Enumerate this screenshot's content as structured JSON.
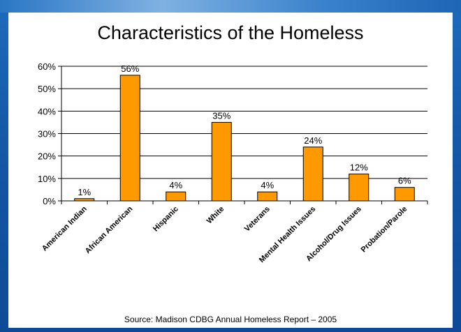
{
  "colors": {
    "background": "#1559a8",
    "panel": "#ffffff",
    "bar_fill": "#ff9900",
    "bar_stroke": "#000000",
    "grid": "#000000"
  },
  "source": "Source: Madison CDBG Annual Homeless Report – 2005",
  "chart_data": {
    "type": "bar",
    "title": "Characteristics of the Homeless",
    "categories": [
      "American Indian",
      "African American",
      "Hispanic",
      "White",
      "Veterans",
      "Mental Health Issues",
      "Alcohol/Drug Issues",
      "Probation/Parole"
    ],
    "values": [
      1,
      56,
      4,
      35,
      4,
      24,
      12,
      6
    ],
    "data_labels": [
      "1%",
      "56%",
      "4%",
      "35%",
      "4%",
      "24%",
      "12%",
      "6%"
    ],
    "y_ticks": [
      "0%",
      "10%",
      "20%",
      "30%",
      "40%",
      "50%",
      "60%"
    ],
    "ylim": [
      0,
      60
    ],
    "xlabel": "",
    "ylabel": "",
    "grid": true,
    "legend": "none"
  }
}
